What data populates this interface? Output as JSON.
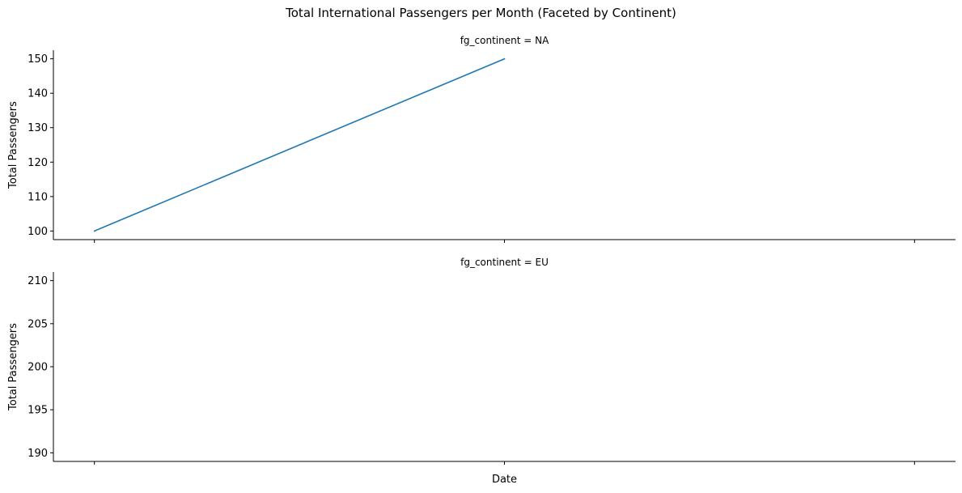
{
  "title": "Total International Passengers per Month (Faceted by Continent)",
  "colors": {
    "line": "#1f77b4",
    "axis": "#000000"
  },
  "chart_data": [
    {
      "type": "line",
      "facet_label": "fg_continent = NA",
      "title": "",
      "xlabel": "",
      "ylabel": "Total Passengers",
      "x_ticks": [
        "",
        "",
        ""
      ],
      "yticks": [
        100,
        110,
        120,
        130,
        140,
        150
      ],
      "ylim": [
        97.5,
        152.5
      ],
      "xlim": [
        -0.1,
        2.1
      ],
      "grid": false,
      "series": [
        {
          "color": "#1f77b4",
          "points": [
            {
              "x": 0,
              "y": 100
            },
            {
              "x": 1,
              "y": 150
            }
          ]
        }
      ]
    },
    {
      "type": "line",
      "facet_label": "fg_continent = EU",
      "title": "",
      "xlabel": "Date",
      "ylabel": "Total Passengers",
      "x_ticks": [
        "",
        "",
        ""
      ],
      "yticks": [
        190,
        195,
        200,
        205,
        210
      ],
      "ylim": [
        189,
        211
      ],
      "xlim": [
        -0.1,
        2.1
      ],
      "grid": false,
      "series": []
    }
  ]
}
